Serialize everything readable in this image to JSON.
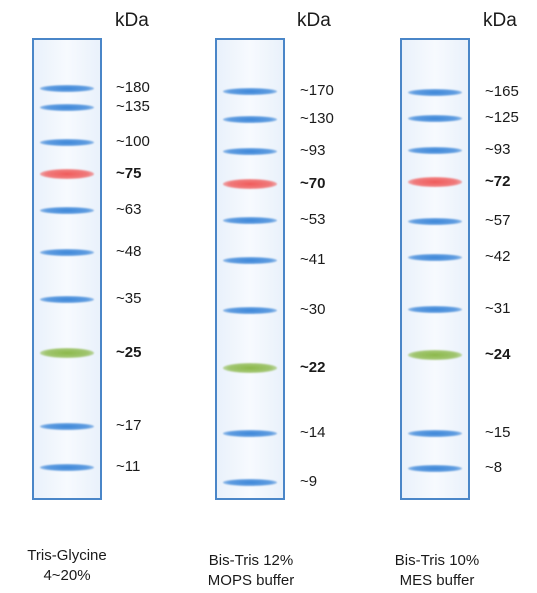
{
  "unit_label": "kDa",
  "colors": {
    "lane_border": "#4a86c8",
    "band_blue": "#3a85d8",
    "band_red": "#ef5a5a",
    "band_green": "#8bb84a"
  },
  "ladders": [
    {
      "caption_line1": "Tris-Glycine",
      "caption_line2": "4~20%",
      "bands": [
        {
          "label": "~180",
          "mw": 180,
          "color": "blue",
          "bold": false
        },
        {
          "label": "~135",
          "mw": 135,
          "color": "blue",
          "bold": false
        },
        {
          "label": "~100",
          "mw": 100,
          "color": "blue",
          "bold": false
        },
        {
          "label": "~75",
          "mw": 75,
          "color": "red",
          "bold": true
        },
        {
          "label": "~63",
          "mw": 63,
          "color": "blue",
          "bold": false
        },
        {
          "label": "~48",
          "mw": 48,
          "color": "blue",
          "bold": false
        },
        {
          "label": "~35",
          "mw": 35,
          "color": "blue",
          "bold": false
        },
        {
          "label": "~25",
          "mw": 25,
          "color": "green",
          "bold": true
        },
        {
          "label": "~17",
          "mw": 17,
          "color": "blue",
          "bold": false
        },
        {
          "label": "~11",
          "mw": 11,
          "color": "blue",
          "bold": false
        }
      ]
    },
    {
      "caption_line1": "Bis-Tris 12%",
      "caption_line2": "MOPS buffer",
      "bands": [
        {
          "label": "~170",
          "mw": 170,
          "color": "blue",
          "bold": false
        },
        {
          "label": "~130",
          "mw": 130,
          "color": "blue",
          "bold": false
        },
        {
          "label": "~93",
          "mw": 93,
          "color": "blue",
          "bold": false
        },
        {
          "label": "~70",
          "mw": 70,
          "color": "red",
          "bold": true
        },
        {
          "label": "~53",
          "mw": 53,
          "color": "blue",
          "bold": false
        },
        {
          "label": "~41",
          "mw": 41,
          "color": "blue",
          "bold": false
        },
        {
          "label": "~30",
          "mw": 30,
          "color": "blue",
          "bold": false
        },
        {
          "label": "~22",
          "mw": 22,
          "color": "green",
          "bold": true
        },
        {
          "label": "~14",
          "mw": 14,
          "color": "blue",
          "bold": false
        },
        {
          "label": "~9",
          "mw": 9,
          "color": "blue",
          "bold": false
        }
      ]
    },
    {
      "caption_line1": "Bis-Tris 10%",
      "caption_line2": "MES buffer",
      "bands": [
        {
          "label": "~165",
          "mw": 165,
          "color": "blue",
          "bold": false
        },
        {
          "label": "~125",
          "mw": 125,
          "color": "blue",
          "bold": false
        },
        {
          "label": "~93",
          "mw": 93,
          "color": "blue",
          "bold": false
        },
        {
          "label": "~72",
          "mw": 72,
          "color": "red",
          "bold": true
        },
        {
          "label": "~57",
          "mw": 57,
          "color": "blue",
          "bold": false
        },
        {
          "label": "~42",
          "mw": 42,
          "color": "blue",
          "bold": false
        },
        {
          "label": "~31",
          "mw": 31,
          "color": "blue",
          "bold": false
        },
        {
          "label": "~24",
          "mw": 24,
          "color": "green",
          "bold": true
        },
        {
          "label": "~15",
          "mw": 15,
          "color": "blue",
          "bold": false
        },
        {
          "label": "~8",
          "mw": 8,
          "color": "blue",
          "bold": false
        }
      ]
    }
  ]
}
